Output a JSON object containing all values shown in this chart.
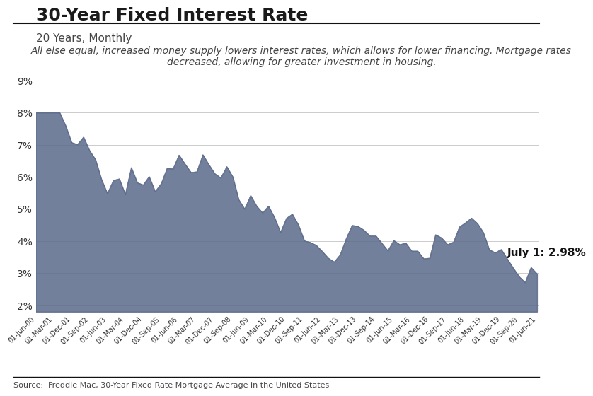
{
  "title": "30-Year Fixed Interest Rate",
  "subtitle": "20 Years, Monthly",
  "annotation": "All else equal, increased money supply lowers interest rates, which allows for lower financing. Mortgage rates\ndecreased, allowing for greater investment in housing.",
  "source": "Source:  Freddie Mac, 30-Year Fixed Rate Mortgage Average in the United States",
  "annotation_label": "July 1: 2.98%",
  "fill_color": "#5a6a8a",
  "fill_alpha": 0.85,
  "background_color": "#ffffff",
  "title_fontsize": 18,
  "subtitle_fontsize": 11,
  "annotation_fontsize": 10,
  "ylabel_vals": [
    "2%",
    "3%",
    "4%",
    "5%",
    "6%",
    "7%",
    "8%",
    "9%"
  ],
  "ylim": [
    1.8,
    9.4
  ],
  "dates": [
    "2001-06-01",
    "2001-09-01",
    "2001-12-01",
    "2002-03-01",
    "2002-06-01",
    "2002-09-01",
    "2002-12-01",
    "2003-03-01",
    "2003-06-01",
    "2003-09-01",
    "2003-12-01",
    "2004-03-01",
    "2004-06-01",
    "2004-09-01",
    "2004-12-01",
    "2005-03-01",
    "2005-06-01",
    "2005-09-01",
    "2005-12-01",
    "2006-03-01",
    "2006-06-01",
    "2006-09-01",
    "2006-12-01",
    "2007-03-01",
    "2007-06-01",
    "2007-09-01",
    "2007-12-01",
    "2008-03-01",
    "2008-06-01",
    "2008-09-01",
    "2008-12-01",
    "2009-03-01",
    "2009-06-01",
    "2009-09-01",
    "2009-12-01",
    "2010-03-01",
    "2010-06-01",
    "2010-09-01",
    "2010-12-01",
    "2011-03-01",
    "2011-06-01",
    "2011-09-01",
    "2011-12-01",
    "2012-03-01",
    "2012-06-01",
    "2012-09-01",
    "2012-12-01",
    "2013-03-01",
    "2013-06-01",
    "2013-09-01",
    "2013-12-01",
    "2014-03-01",
    "2014-06-01",
    "2014-09-01",
    "2014-12-01",
    "2015-03-01",
    "2015-06-01",
    "2015-09-01",
    "2015-12-01",
    "2016-03-01",
    "2016-06-01",
    "2016-09-01",
    "2016-12-01",
    "2017-03-01",
    "2017-06-01",
    "2017-09-01",
    "2017-12-01",
    "2018-03-01",
    "2018-06-01",
    "2018-09-01",
    "2018-12-01",
    "2019-03-01",
    "2019-06-01",
    "2019-09-01",
    "2019-12-01",
    "2020-03-01",
    "2020-06-01",
    "2020-09-01",
    "2020-12-01",
    "2021-03-01",
    "2021-06-01"
  ],
  "values": [
    8.0,
    7.59,
    7.07,
    7.01,
    7.24,
    6.82,
    6.54,
    5.93,
    5.48,
    5.89,
    5.94,
    5.45,
    6.29,
    5.82,
    5.75,
    6.01,
    5.54,
    5.79,
    6.27,
    6.25,
    6.68,
    6.4,
    6.14,
    6.16,
    6.69,
    6.38,
    6.1,
    5.97,
    6.32,
    6.0,
    5.29,
    5.0,
    5.42,
    5.09,
    4.88,
    5.09,
    4.74,
    4.27,
    4.71,
    4.84,
    4.51,
    4.01,
    3.96,
    3.87,
    3.68,
    3.47,
    3.35,
    3.57,
    4.07,
    4.49,
    4.46,
    4.34,
    4.16,
    4.16,
    3.93,
    3.7,
    4.02,
    3.89,
    3.94,
    3.69,
    3.69,
    3.45,
    3.47,
    4.2,
    4.1,
    3.89,
    3.97,
    4.44,
    4.57,
    4.72,
    4.55,
    4.27,
    3.73,
    3.64,
    3.74,
    3.45,
    3.16,
    2.89,
    2.71,
    3.18,
    2.98
  ],
  "tick_dates": [
    "2000-06-01",
    "2001-03-01",
    "2001-12-01",
    "2002-09-01",
    "2003-06-01",
    "2004-03-01",
    "2004-12-01",
    "2005-09-01",
    "2006-06-01",
    "2007-03-01",
    "2007-12-01",
    "2008-09-01",
    "2009-06-01",
    "2010-03-01",
    "2010-12-01",
    "2011-09-01",
    "2012-06-01",
    "2013-03-01",
    "2013-12-01",
    "2014-09-01",
    "2015-06-01",
    "2016-03-01",
    "2016-12-01",
    "2017-09-01",
    "2018-06-01",
    "2019-03-01",
    "2019-12-01",
    "2020-09-01",
    "2021-06-01"
  ],
  "tick_labels": [
    "01-Jun-00",
    "01-Mar-01",
    "01-Dec-01",
    "01-Sep-02",
    "01-Jun-03",
    "01-Mar-04",
    "01-Dec-04",
    "01-Sep-05",
    "01-Jun-06",
    "01-Mar-07",
    "01-Dec-07",
    "01-Sep-08",
    "01-Jun-09",
    "01-Mar-10",
    "01-Dec-10",
    "01-Sep-11",
    "01-Jun-12",
    "01-Mar-13",
    "01-Dec-13",
    "01-Sep-14",
    "01-Jun-15",
    "01-Mar-16",
    "01-Dec-16",
    "01-Sep-17",
    "01-Jun-18",
    "01-Mar-19",
    "01-Dec-19",
    "01-Sep-20",
    "01-Jun-21"
  ]
}
